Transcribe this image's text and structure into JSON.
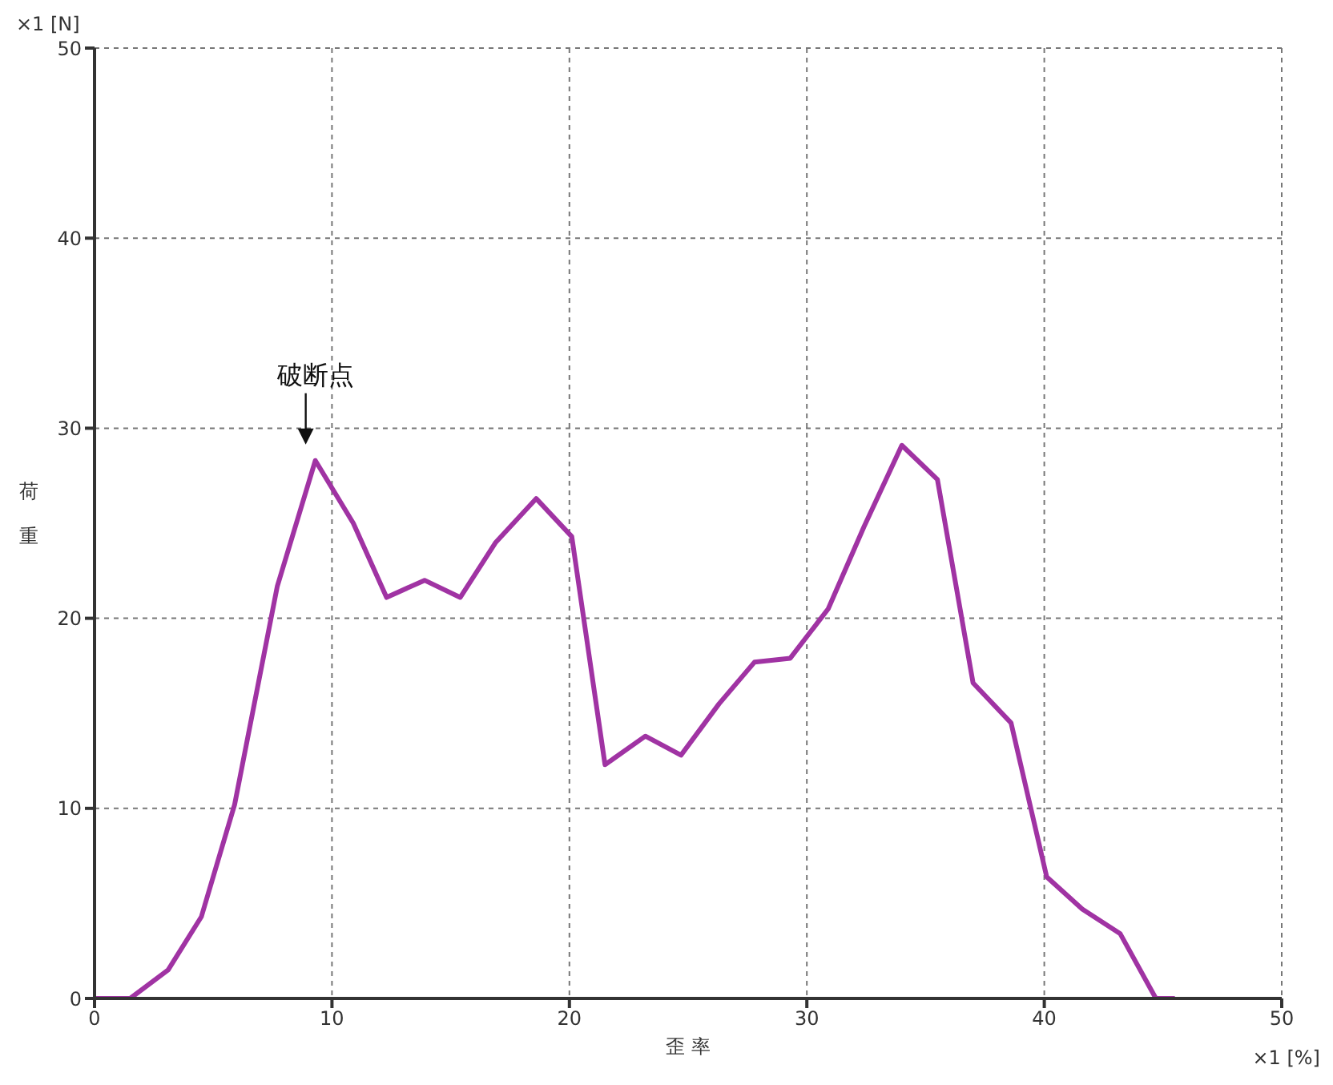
{
  "chart_data": {
    "type": "line",
    "xlabel": "歪 率",
    "ylabel": "荷重",
    "annotations": [
      "×1 [N]",
      "×1 [%]",
      {
        "text": "破断点",
        "x": 9.3,
        "y": 28.3
      }
    ],
    "x": [
      0,
      1.5,
      3.1,
      4.5,
      5.9,
      7.7,
      9.3,
      10.9,
      12.3,
      13.9,
      15.4,
      16.9,
      18.6,
      20.1,
      21.5,
      23.2,
      24.7,
      26.3,
      27.8,
      29.3,
      30.9,
      32.4,
      34.0,
      35.5,
      37.0,
      38.6,
      40.1,
      41.6,
      43.2,
      44.7,
      45.5
    ],
    "series": [
      {
        "color": "#a033a3",
        "values": [
          0,
          0,
          1.5,
          4.3,
          10.2,
          21.7,
          28.3,
          25,
          21.1,
          22,
          21.1,
          24,
          26.3,
          24.3,
          12.3,
          13.8,
          12.8,
          15.5,
          17.7,
          17.9,
          20.5,
          24.8,
          29.1,
          27.3,
          16.6,
          14.5,
          6.4,
          4.7,
          3.4,
          0,
          0
        ]
      }
    ],
    "xlim": [
      0,
      50
    ],
    "xticks": [
      0,
      10,
      20,
      30,
      40,
      50
    ],
    "ylim": [
      0,
      50
    ],
    "yticks": [
      0,
      10,
      20,
      30,
      40,
      50
    ],
    "grid": true,
    "line_style": "solid",
    "marker": "none",
    "legend": false
  }
}
